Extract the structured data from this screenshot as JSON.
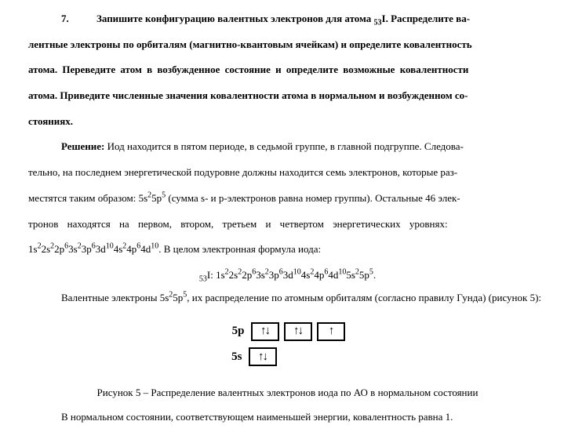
{
  "problem": {
    "number": "7.",
    "text_lines": [
      "Запишите конфигурацию валентных электронов для атома ₅₃I. Распределите ва-",
      "лентные электроны по орбиталям (магнитно-квантовым ячейкам) и определите ковалентность",
      "атома. Переведите атом в возбужденное состояние и определите возможные ковалентности",
      "атома. Приведите численные значения ковалентности атома в нормальном и возбужденном со-",
      "стояниях."
    ]
  },
  "solution": {
    "label": "Решение:",
    "para1_lines": [
      "Иод находится в пятом периоде, в седьмой группе, в главной подгруппе. Следова-",
      "тельно, на последнем энергетической подуровне должны находится семь электронов, которые раз-",
      "местятся таким образом: 5s²5p⁵ (сумма s- и p-электронов равна номер группы). Остальные 46 элек-",
      "тронов  находятся  на  первом,  втором,  третьем  и  четвертом  энергетических  уровнях:",
      "1s²2s²2p⁶3s²3p⁶3d¹⁰4s²4p⁶4d¹⁰. В целом электронная формула иода:"
    ],
    "full_formula_prefix": "₅₃I: ",
    "full_formula": "1s²2s²2p⁶3s²3p⁶3d¹⁰4s²4p⁶4d¹⁰5s²5p⁵.",
    "para2": "Валентные электроны 5s²5p⁵, их распределение по атомным орбиталям (согласно правилу Гунда) (рисунок 5):",
    "figure_caption": "Рисунок 5 – Распределение валентных электронов иода по АО в нормальном состоянии",
    "para3": "В нормальном состоянии, соответствующем наименьшей энергии, ковалентность равна 1."
  },
  "orbitals": {
    "p_label": "5p",
    "s_label": "5s",
    "p_boxes": [
      "↑↓",
      "↑↓",
      "↑"
    ],
    "s_boxes": [
      "↑↓"
    ]
  }
}
